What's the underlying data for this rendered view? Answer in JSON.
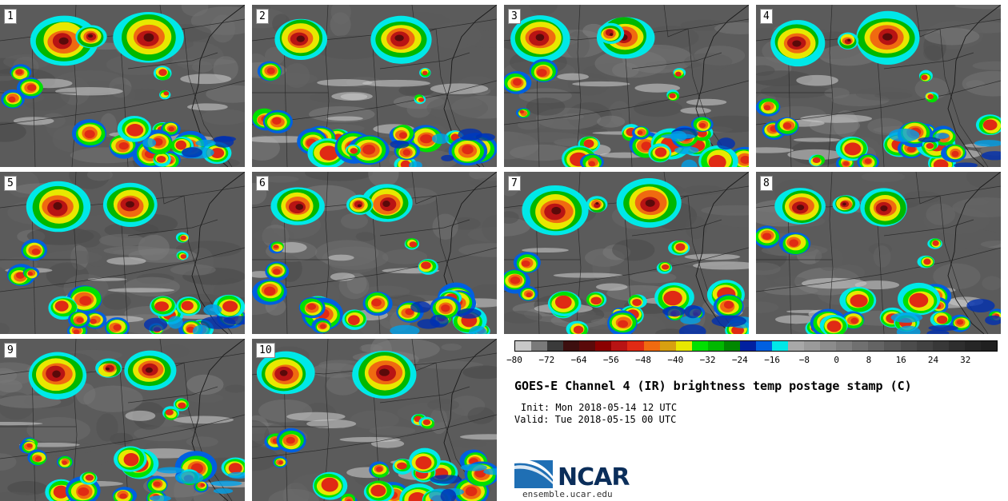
{
  "panels": [
    {
      "label": "1",
      "seed": 11
    },
    {
      "label": "2",
      "seed": 23
    },
    {
      "label": "3",
      "seed": 37
    },
    {
      "label": "4",
      "seed": 41
    },
    {
      "label": "5",
      "seed": 53
    },
    {
      "label": "6",
      "seed": 67
    },
    {
      "label": "7",
      "seed": 71
    },
    {
      "label": "8",
      "seed": 89
    },
    {
      "label": "9",
      "seed": 97
    },
    {
      "label": "10",
      "seed": 103
    }
  ],
  "colorbar": {
    "colors": [
      "#c8c8c8",
      "#7a7a7a",
      "#3a3a3a",
      "#3d0f0f",
      "#5a0a0a",
      "#8b0000",
      "#b81414",
      "#e02a14",
      "#f06a10",
      "#d8a010",
      "#e8e800",
      "#00e000",
      "#00b800",
      "#008800",
      "#0020a0",
      "#0060e0",
      "#00e8e8",
      "#a8a8a8",
      "#9a9a9a",
      "#8c8c8c",
      "#7e7e7e",
      "#707070",
      "#646464",
      "#585858",
      "#4c4c4c",
      "#424242",
      "#383838",
      "#2e2e2e",
      "#262626",
      "#202020"
    ],
    "ticks": [
      "−80",
      "−72",
      "−64",
      "−56",
      "−48",
      "−40",
      "−32",
      "−24",
      "−16",
      "−8",
      "0",
      "8",
      "16",
      "24",
      "32"
    ]
  },
  "title": "GOES-E Channel 4 (IR) brightness temp postage stamp (C)",
  "init": "Init: Mon 2018-05-14 12 UTC",
  "valid": "Valid: Tue 2018-05-15 00 UTC",
  "logo": {
    "text": "NCAR",
    "url": "ensemble.ucar.edu"
  }
}
